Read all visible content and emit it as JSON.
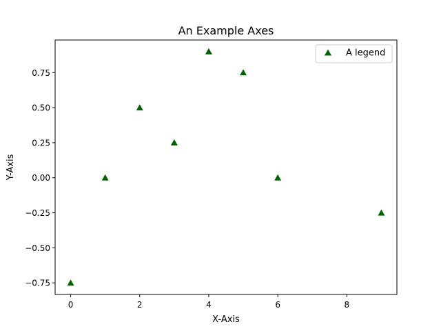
{
  "chart_data": {
    "type": "scatter",
    "title": "An Example Axes",
    "xlabel": "X-Axis",
    "ylabel": "Y-Axis",
    "xlim": [
      -0.45,
      9.45
    ],
    "ylim": [
      -0.8325,
      0.9825
    ],
    "xticks": [
      0,
      2,
      4,
      6,
      8
    ],
    "xtick_labels": [
      "0",
      "2",
      "4",
      "6",
      "8"
    ],
    "yticks": [
      -0.75,
      -0.5,
      -0.25,
      0.0,
      0.25,
      0.5,
      0.75
    ],
    "ytick_labels": [
      "−0.75",
      "−0.50",
      "−0.25",
      "0.00",
      "0.25",
      "0.50",
      "0.75"
    ],
    "grid": false,
    "legend_position": "top-right",
    "series": [
      {
        "name": "A legend",
        "marker": "triangle",
        "color": "#006400",
        "x": [
          0,
          1,
          2,
          3,
          4,
          5,
          6,
          9
        ],
        "y": [
          -0.75,
          0.0,
          0.5,
          0.25,
          0.9,
          0.75,
          0.0,
          -0.25
        ]
      }
    ]
  }
}
